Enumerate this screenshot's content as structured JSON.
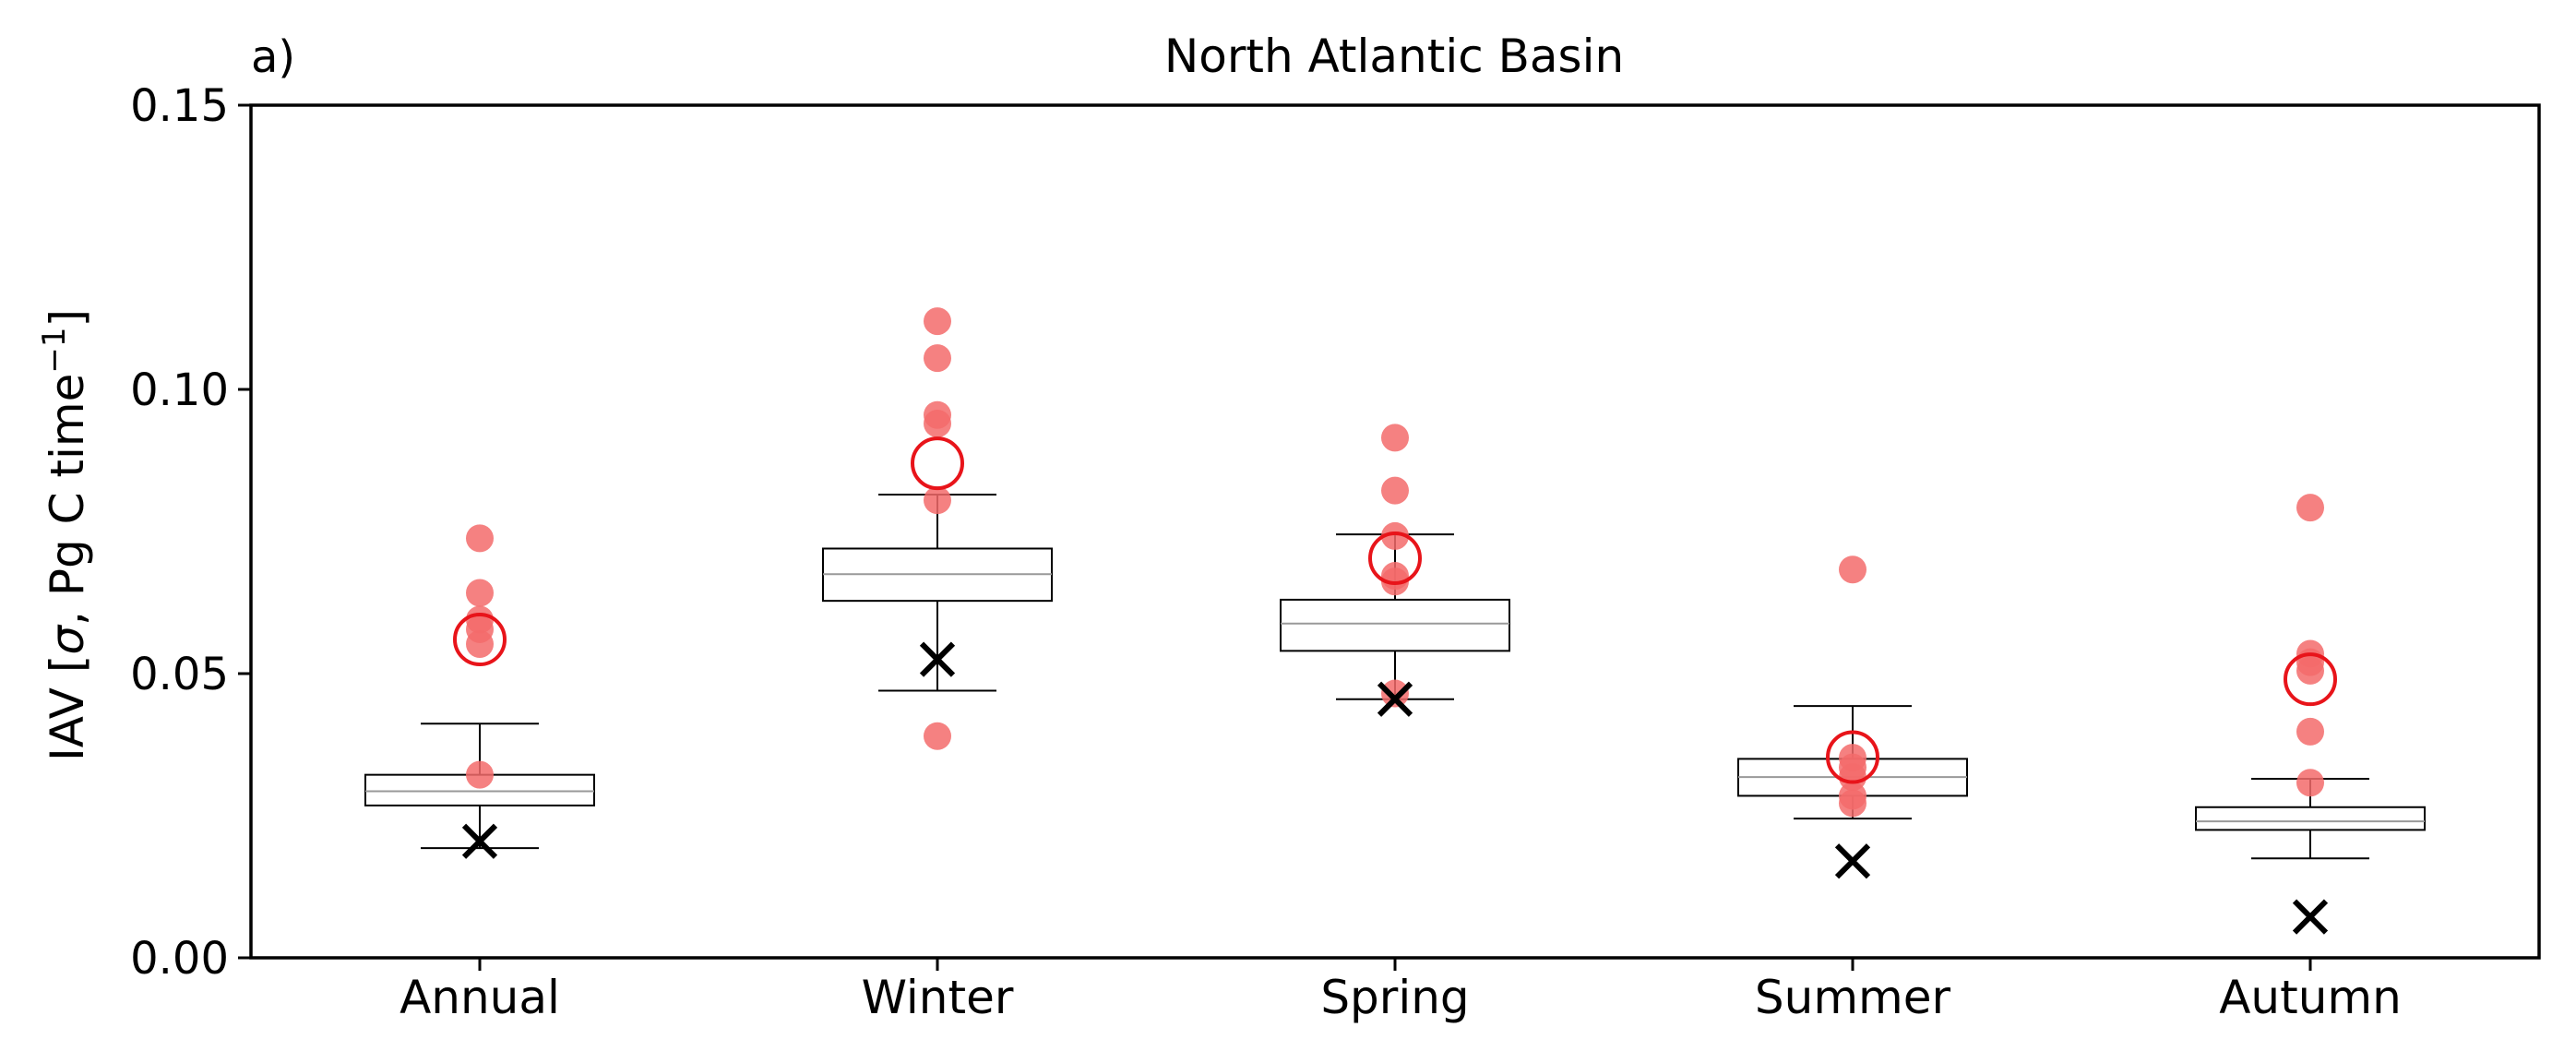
{
  "chart_data": {
    "type": "box",
    "panel_label": "a)",
    "title": "North Atlantic Basin",
    "ylabel": {
      "prefix": "IAV [",
      "sigma": "σ",
      "middle": ", Pg C time",
      "superscript": "−1",
      "suffix": "]"
    },
    "ylim": [
      0,
      0.15
    ],
    "yticks": [
      {
        "value": 0.0,
        "label": "0.00"
      },
      {
        "value": 0.05,
        "label": "0.05"
      },
      {
        "value": 0.1,
        "label": "0.10"
      },
      {
        "value": 0.15,
        "label": "0.15"
      }
    ],
    "categories": [
      "Annual",
      "Winter",
      "Spring",
      "Summer",
      "Autumn"
    ],
    "boxes": [
      {
        "category": "Annual",
        "whisker_low": 0.0193,
        "q1": 0.0268,
        "median": 0.0293,
        "q3": 0.0322,
        "whisker_high": 0.0412
      },
      {
        "category": "Winter",
        "whisker_low": 0.047,
        "q1": 0.0628,
        "median": 0.0675,
        "q3": 0.072,
        "whisker_high": 0.0815
      },
      {
        "category": "Spring",
        "whisker_low": 0.0455,
        "q1": 0.054,
        "median": 0.0588,
        "q3": 0.063,
        "whisker_high": 0.0745
      },
      {
        "category": "Summer",
        "whisker_low": 0.0245,
        "q1": 0.0285,
        "median": 0.0318,
        "q3": 0.035,
        "whisker_high": 0.0443
      },
      {
        "category": "Autumn",
        "whisker_low": 0.0175,
        "q1": 0.0225,
        "median": 0.024,
        "q3": 0.0265,
        "whisker_high": 0.0315
      }
    ],
    "red_dots": [
      {
        "category": "Annual",
        "values": [
          0.0738,
          0.0642,
          0.0595,
          0.0578,
          0.0552,
          0.0322
        ]
      },
      {
        "category": "Winter",
        "values": [
          0.112,
          0.1055,
          0.0955,
          0.094,
          0.0805,
          0.039
        ]
      },
      {
        "category": "Spring",
        "values": [
          0.0915,
          0.0822,
          0.0742,
          0.0672,
          0.0662,
          0.0465
        ]
      },
      {
        "category": "Summer",
        "values": [
          0.0683,
          0.0352,
          0.0335,
          0.0318,
          0.0285,
          0.0272
        ]
      },
      {
        "category": "Autumn",
        "values": [
          0.0792,
          0.0535,
          0.052,
          0.0505,
          0.0398,
          0.0308
        ]
      }
    ],
    "red_circles": [
      {
        "category": "Annual",
        "value": 0.056
      },
      {
        "category": "Winter",
        "value": 0.087
      },
      {
        "category": "Spring",
        "value": 0.0703
      },
      {
        "category": "Summer",
        "value": 0.0353
      },
      {
        "category": "Autumn",
        "value": 0.049
      }
    ],
    "x_markers": [
      {
        "category": "Annual",
        "value": 0.0205
      },
      {
        "category": "Winter",
        "value": 0.0525
      },
      {
        "category": "Spring",
        "value": 0.0455
      },
      {
        "category": "Summer",
        "value": 0.017
      },
      {
        "category": "Autumn",
        "value": 0.0072
      }
    ],
    "colors": {
      "box_edge": "#000000",
      "median": "#999999",
      "dot_fill": "#f36b6b",
      "circle_edge": "#e8141a",
      "x_marker": "#000000",
      "axes": "#000000"
    },
    "grid": false,
    "legend": "none"
  }
}
